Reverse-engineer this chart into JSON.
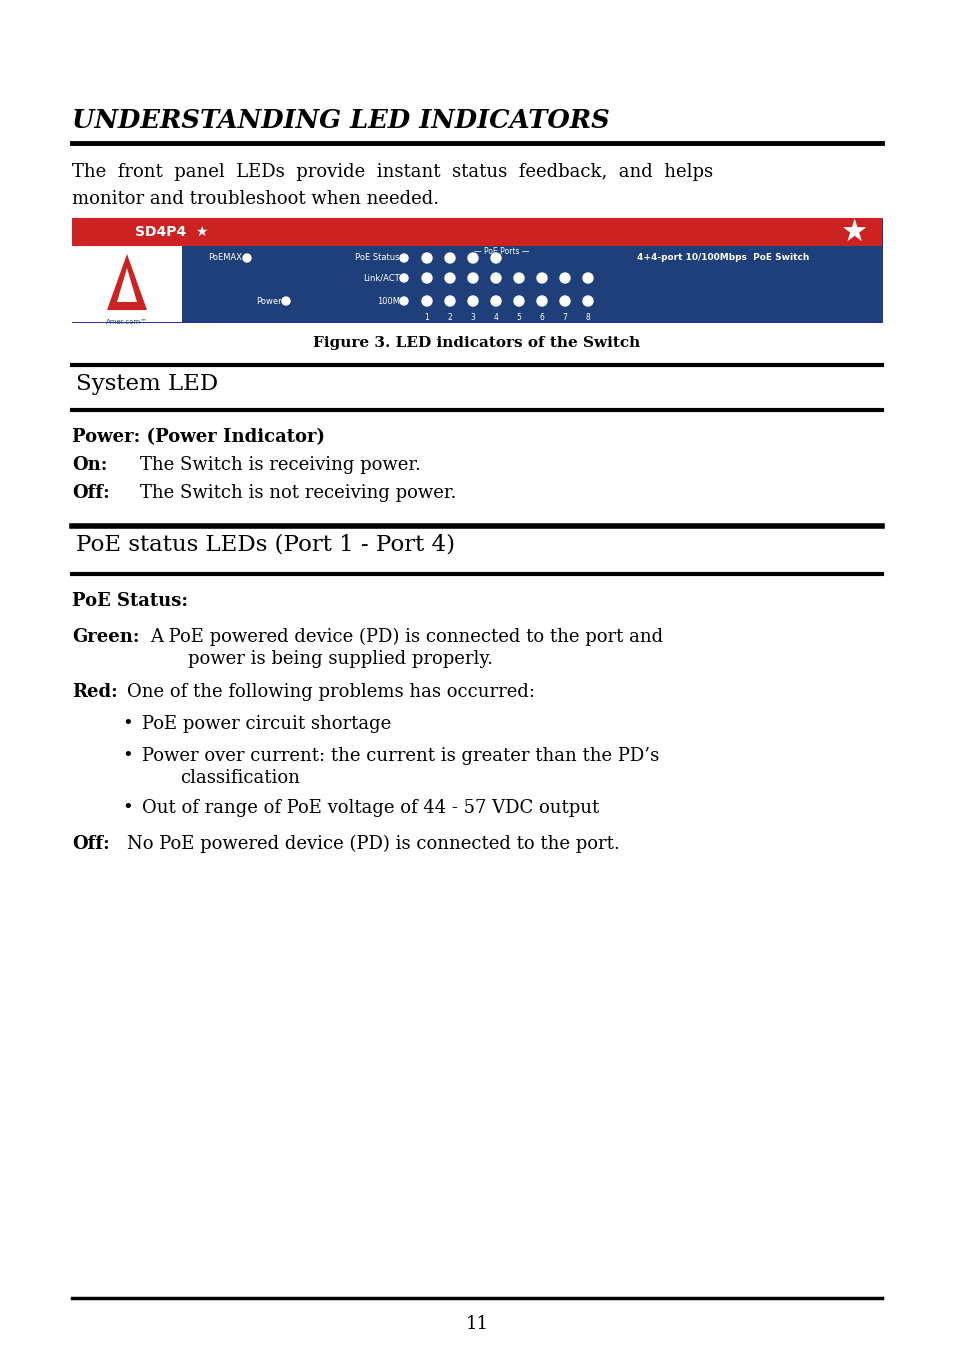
{
  "bg_color": "#ffffff",
  "title": "UNDERSTANDING LED INDICATORS",
  "figure_caption": "Figure 3. LED indicators of the Switch",
  "section1_title": "System LED",
  "section1_subtitle": "Power: (Power Indicator)",
  "on_label": "On:",
  "on_text": "The Switch is receiving power.",
  "off_label": "Off:",
  "off_text": "The Switch is not receiving power.",
  "section2_title": "PoE status LEDs (Port 1 - Port 4)",
  "section2_subtitle": "PoE Status:",
  "green_label": "Green:",
  "green_text1": "A PoE powered device (PD) is connected to the port and",
  "green_text2": "power is being supplied properly.",
  "red_label": "Red:",
  "red_text": "One of the following problems has occurred:",
  "bullet1": "PoE power circuit shortage",
  "bullet2_line1": "Power over current: the current is greater than the PD’s",
  "bullet2_line2": "classification",
  "bullet3": "Out of range of PoE voltage of 44 - 57 VDC output",
  "off2_label": "Off:",
  "off2_text": "No PoE powered device (PD) is connected to the port.",
  "page_number": "11",
  "switch_bg": "#1e3f7a",
  "switch_red": "#cc2222",
  "intro_line1": "The  front  panel  LEDs  provide  instant  status  feedback,  and  helps",
  "intro_line2": "monitor and troubleshoot when needed."
}
